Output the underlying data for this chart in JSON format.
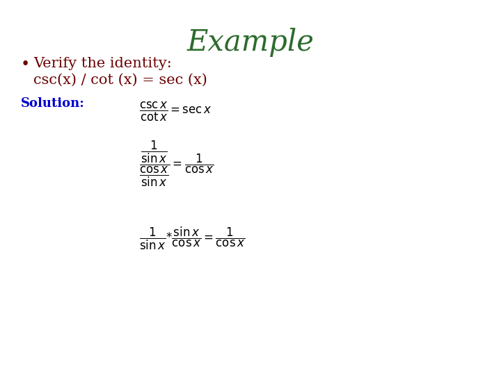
{
  "title": "Example",
  "title_color": "#2d6b2d",
  "title_fontsize": 30,
  "bullet_text": "  Verify the identity:",
  "identity_text": "    csc(x) / cot (x) = sec (x)",
  "bullet_color": "#6b0000",
  "solution_label": "Solution:",
  "solution_color": "#0000cc",
  "background_color": "#ffffff",
  "math_color": "#000000",
  "eq1": "$\\dfrac{\\mathrm{csc}\\,x}{\\mathrm{cot}\\,x} = \\mathrm{sec}\\,x$",
  "eq2": "$\\dfrac{\\dfrac{1}{\\sin x}}{\\dfrac{\\cos x}{\\sin x}} = \\dfrac{1}{\\cos x}$",
  "eq3": "$\\dfrac{1}{\\sin x} {*} \\dfrac{\\sin x}{\\cos x} = \\dfrac{1}{\\cos x}$"
}
